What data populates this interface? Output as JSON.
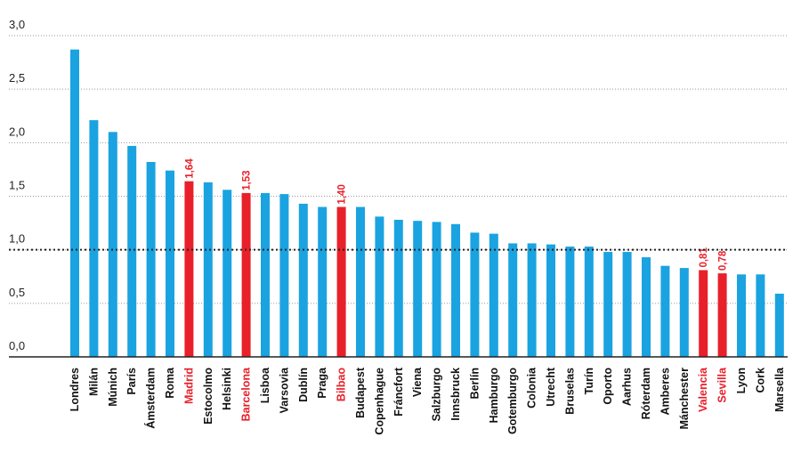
{
  "chart_data": {
    "type": "bar",
    "title": "",
    "xlabel": "",
    "ylabel": "",
    "ylim": [
      0,
      3.0
    ],
    "yticks": [
      "0,0",
      "0,5",
      "1,0",
      "1,5",
      "2,0",
      "2,5",
      "3,0"
    ],
    "reference_line": 1.0,
    "grid": true,
    "colors": {
      "default": "#1aa3e0",
      "highlight": "#e8202a",
      "axis": "#222222",
      "grid": "#999999"
    },
    "categories": [
      "Londres",
      "Milán",
      "Múnich",
      "París",
      "Ámsterdam",
      "Roma",
      "Madrid",
      "Estocolmo",
      "Helsinki",
      "Barcelona",
      "Lisboa",
      "Varsovia",
      "Dublín",
      "Praga",
      "Bilbao",
      "Budapest",
      "Copenhague",
      "Fráncfort",
      "Viena",
      "Salzburgo",
      "Innsbruck",
      "Berlín",
      "Hamburgo",
      "Gotemburgo",
      "Colonia",
      "Utrecht",
      "Bruselas",
      "Turín",
      "Oporto",
      "Aarhus",
      "Róterdam",
      "Amberes",
      "Mánchester",
      "Valencia",
      "Sevilla",
      "Lyon",
      "Cork",
      "Marsella"
    ],
    "values": [
      2.87,
      2.21,
      2.1,
      1.97,
      1.82,
      1.74,
      1.64,
      1.63,
      1.56,
      1.53,
      1.53,
      1.52,
      1.43,
      1.4,
      1.4,
      1.4,
      1.31,
      1.28,
      1.27,
      1.26,
      1.24,
      1.16,
      1.15,
      1.06,
      1.06,
      1.05,
      1.03,
      1.03,
      0.98,
      0.98,
      0.93,
      0.85,
      0.83,
      0.81,
      0.78,
      0.77,
      0.77,
      0.59
    ],
    "highlighted": [
      "Madrid",
      "Barcelona",
      "Bilbao",
      "Valencia",
      "Sevilla"
    ],
    "value_labels": {
      "Madrid": "1,64",
      "Barcelona": "1,53",
      "Bilbao": "1,40",
      "Valencia": "0,81",
      "Sevilla": "0,78"
    }
  }
}
